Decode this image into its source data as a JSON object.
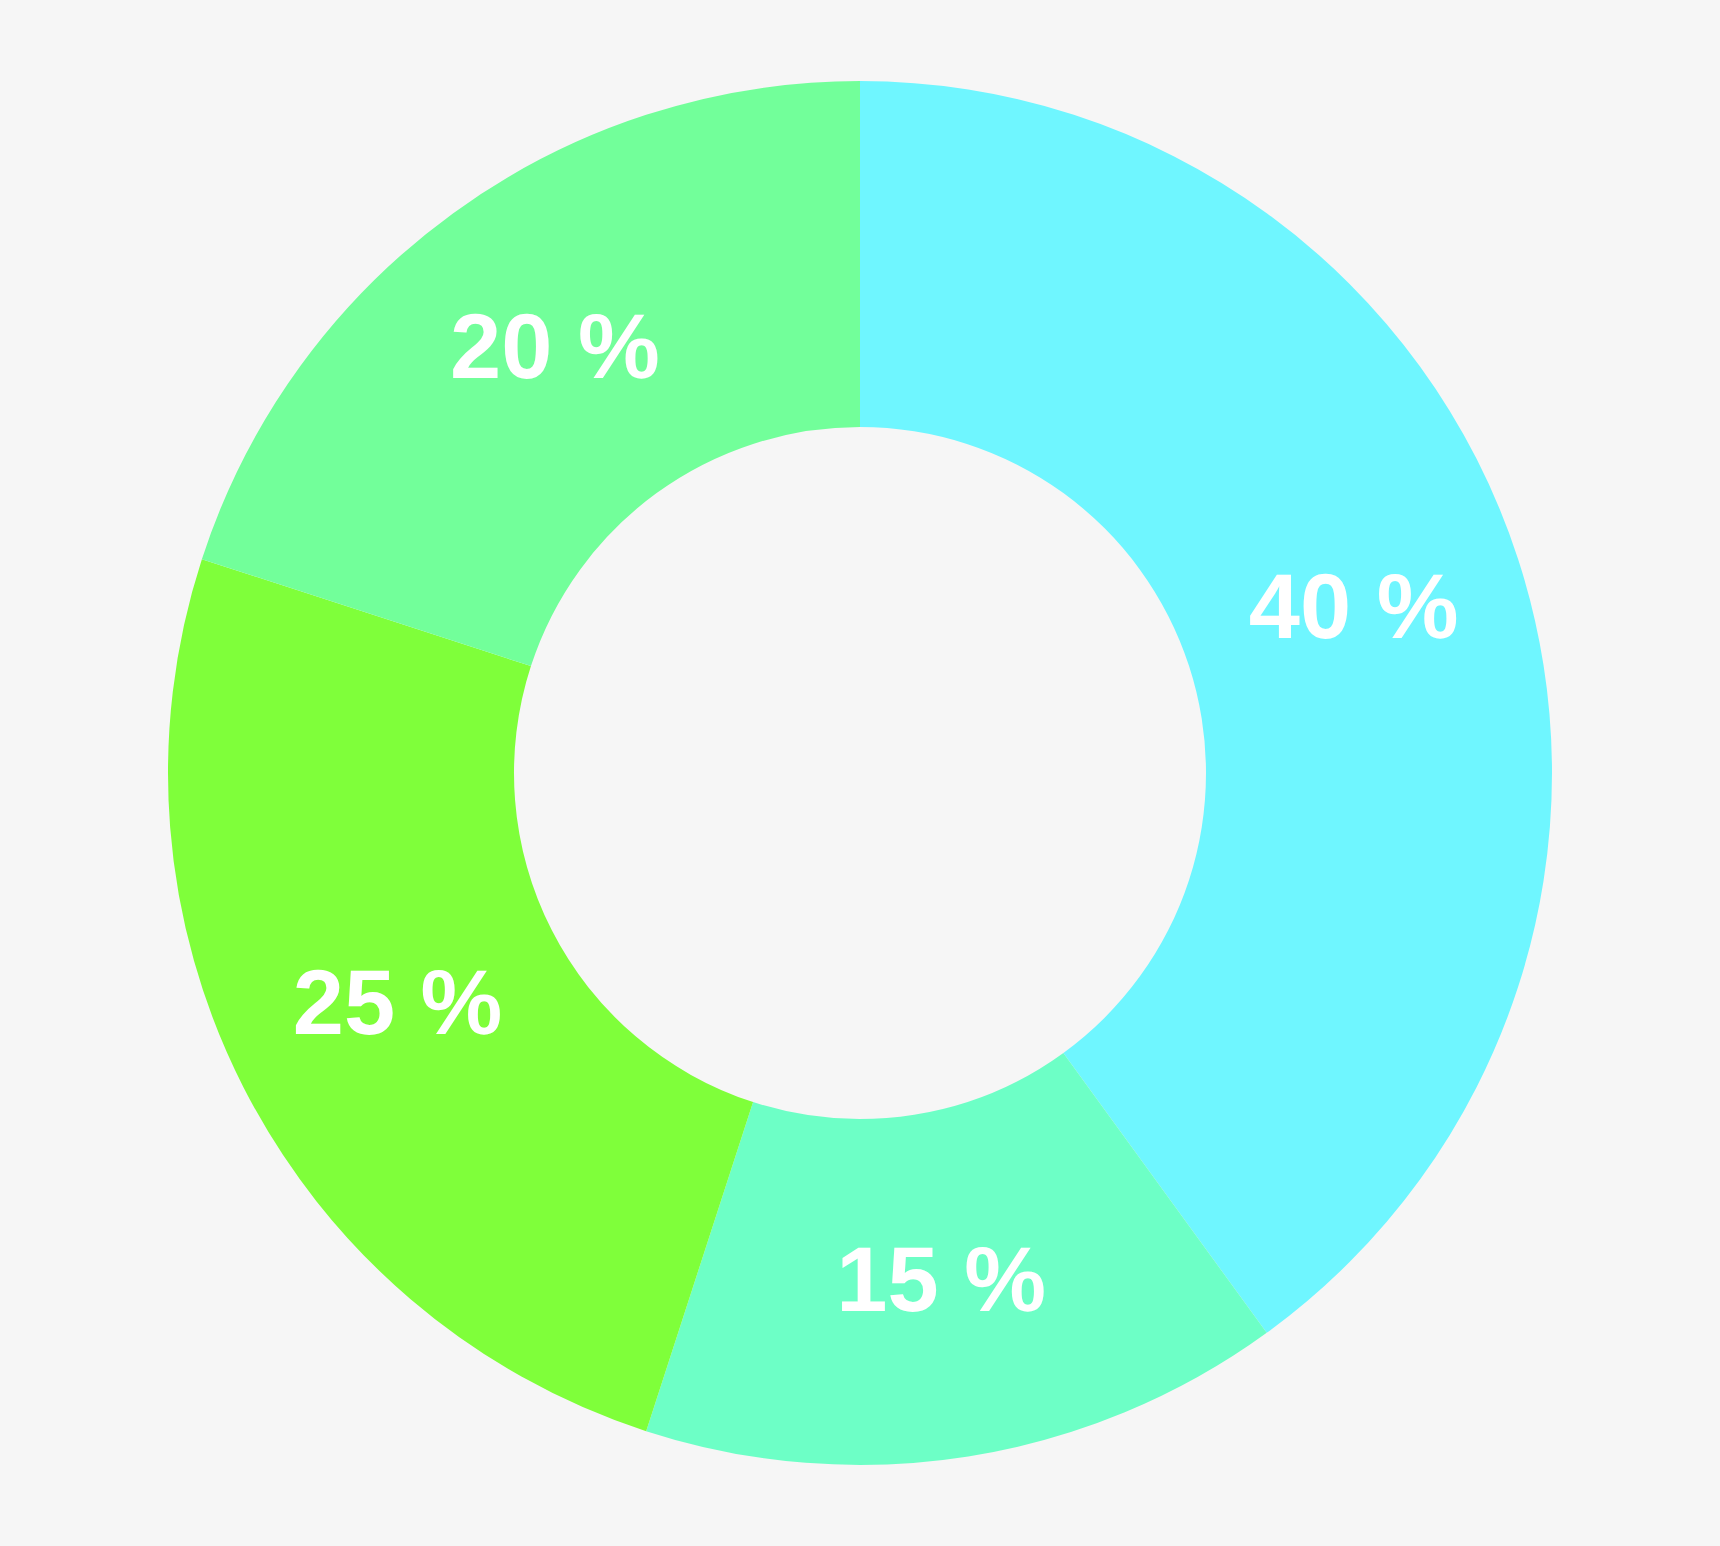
{
  "chart_data": {
    "type": "donut",
    "categories": [
      null,
      null,
      null,
      null
    ],
    "values": [
      40,
      15,
      25,
      20
    ],
    "colors": [
      "#6ff6ff",
      "#6dffc6",
      "#7fff3a",
      "#72ff9a"
    ],
    "value_labels": [
      "40 %",
      "15 %",
      "25 %",
      "20 %"
    ],
    "legend": false
  }
}
